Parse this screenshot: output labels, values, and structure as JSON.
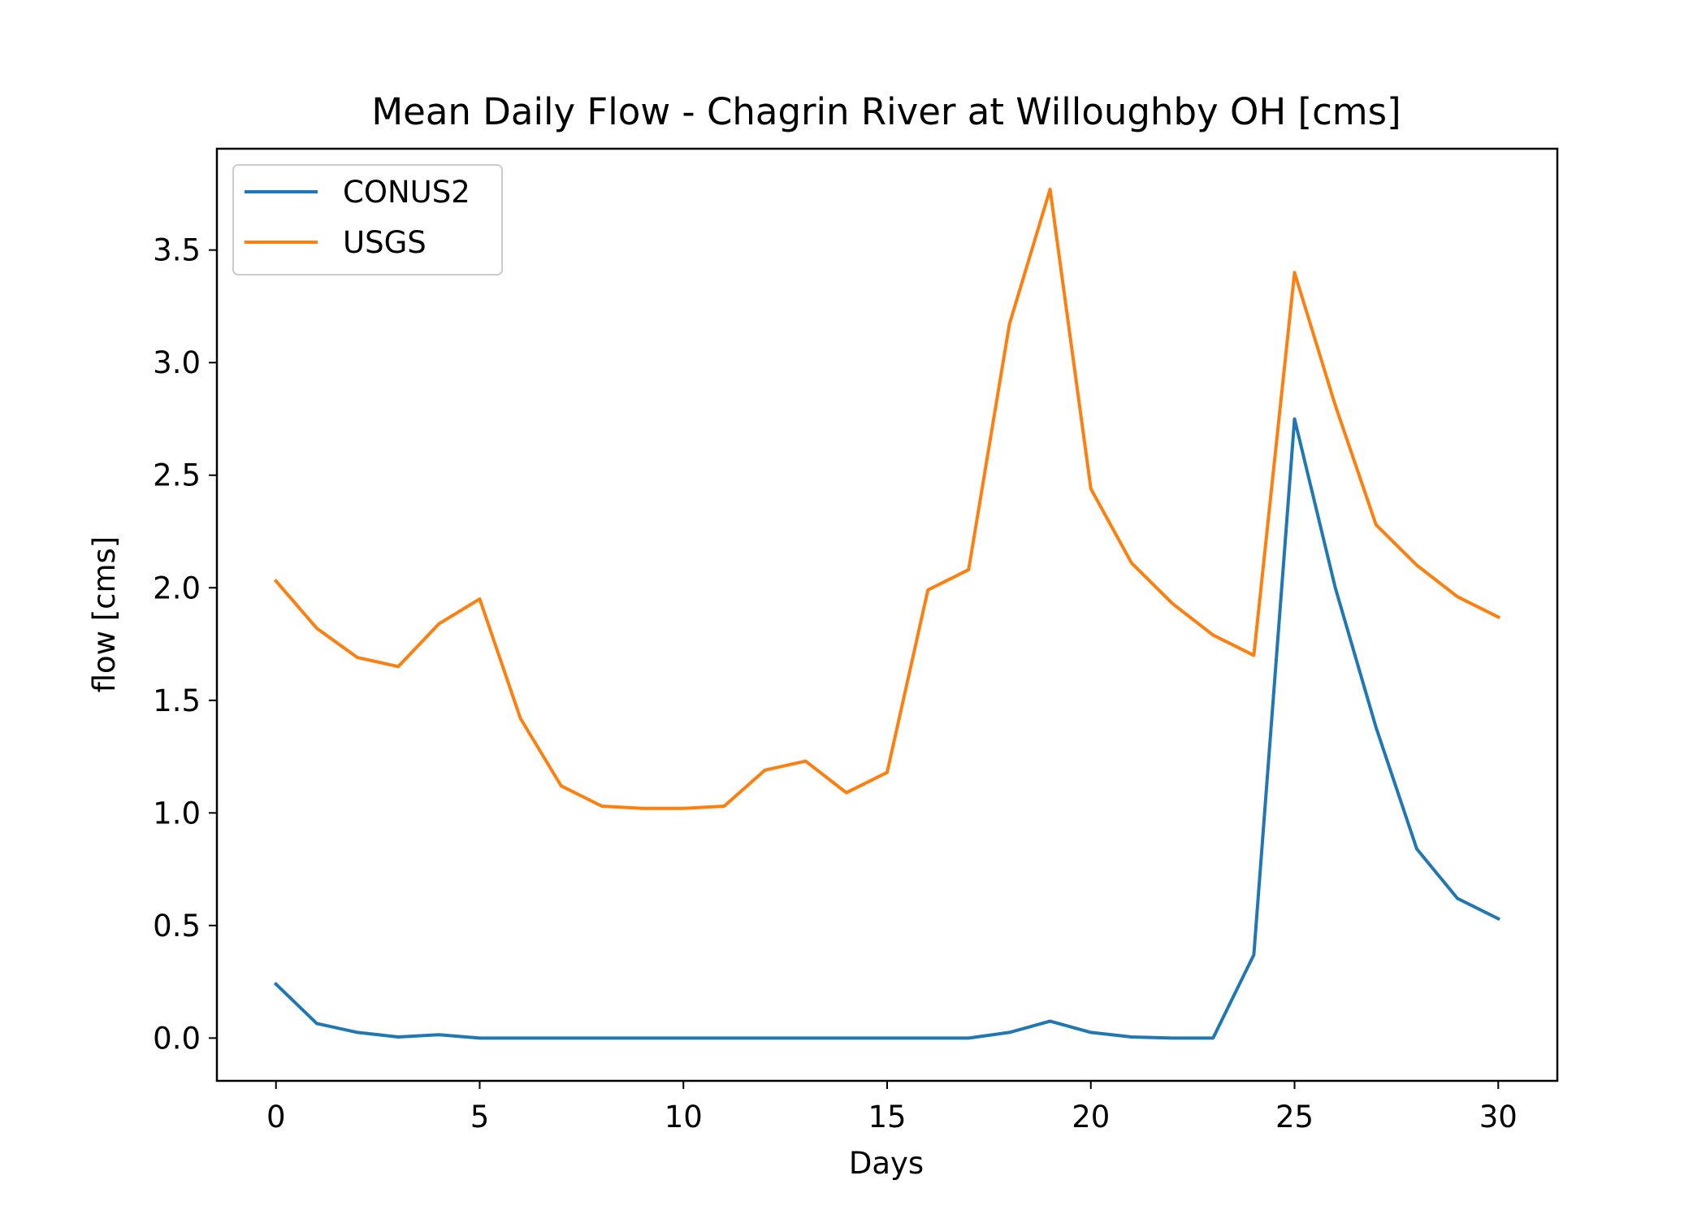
{
  "chart_data": {
    "type": "line",
    "title": "Mean Daily Flow - Chagrin River at Willoughby OH [cms]",
    "xlabel": "Days",
    "ylabel": "flow [cms]",
    "xlim": [
      -1.45,
      31.45
    ],
    "ylim": [
      -0.19,
      3.95
    ],
    "xticks": [
      0,
      5,
      10,
      15,
      20,
      25,
      30
    ],
    "yticks": [
      0.0,
      0.5,
      1.0,
      1.5,
      2.0,
      2.5,
      3.0,
      3.5
    ],
    "ytick_labels": [
      "0.0",
      "0.5",
      "1.0",
      "1.5",
      "2.0",
      "2.5",
      "3.0",
      "3.5"
    ],
    "grid": false,
    "legend": "top-left",
    "x": [
      0,
      1,
      2,
      3,
      4,
      5,
      6,
      7,
      8,
      9,
      10,
      11,
      12,
      13,
      14,
      15,
      16,
      17,
      18,
      19,
      20,
      21,
      22,
      23,
      24,
      25,
      26,
      27,
      28,
      29,
      30
    ],
    "series": [
      {
        "name": "CONUS2",
        "color": "#1f77b4",
        "values": [
          0.24,
          0.065,
          0.025,
          0.005,
          0.015,
          0.0,
          0.0,
          0.0,
          0.0,
          0.0,
          0.0,
          0.0,
          0.0,
          0.0,
          0.0,
          0.0,
          0.0,
          0.0,
          0.025,
          0.075,
          0.025,
          0.005,
          0.0,
          0.0,
          0.37,
          2.75,
          2.0,
          1.38,
          0.84,
          0.62,
          0.53
        ]
      },
      {
        "name": "USGS",
        "color": "#ff7f0e",
        "values": [
          2.03,
          1.82,
          1.69,
          1.65,
          1.84,
          1.95,
          1.42,
          1.12,
          1.03,
          1.02,
          1.02,
          1.03,
          1.19,
          1.23,
          1.09,
          1.18,
          1.99,
          2.08,
          3.17,
          3.77,
          2.44,
          2.11,
          1.93,
          1.79,
          1.7,
          3.4,
          2.81,
          2.28,
          2.1,
          1.96,
          1.87
        ]
      }
    ]
  }
}
